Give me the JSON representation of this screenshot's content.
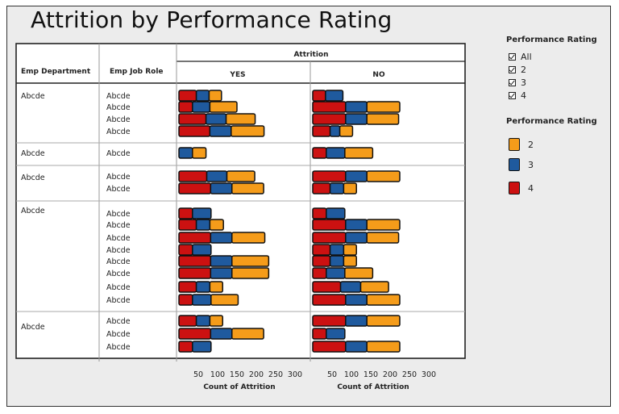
{
  "title": "Attrition by Performance Rating",
  "filter": {
    "title": "Performance Rating",
    "items": [
      "All",
      "2",
      "3",
      "4"
    ]
  },
  "legend": {
    "title": "Performance Rating",
    "items": [
      {
        "label": "2",
        "color": "#f59c1a"
      },
      {
        "label": "3",
        "color": "#1f5a9e"
      },
      {
        "label": "4",
        "color": "#cc1111"
      }
    ]
  },
  "chart_data": {
    "type": "bar",
    "stacked": true,
    "orientation": "horizontal",
    "row_headers": [
      "Emp Department",
      "Emp Job Role"
    ],
    "column_group_label": "Attrition",
    "panels": [
      "YES",
      "NO"
    ],
    "xlabel": "Count of Attrition",
    "xticks": [
      50,
      100,
      150,
      200,
      250,
      300
    ],
    "xlim": [
      0,
      300
    ],
    "series_order": [
      "4",
      "3",
      "2"
    ],
    "departments": [
      {
        "name": "Abcde",
        "roles": [
          {
            "name": "Abcde",
            "yes": {
              "4": 45,
              "3": 33,
              "2": 32
            },
            "no": {
              "4": 33,
              "3": 45,
              "2": 0
            }
          },
          {
            "name": "Abcde",
            "yes": {
              "4": 35,
              "3": 45,
              "2": 70
            },
            "no": {
              "4": 85,
              "3": 55,
              "2": 85
            }
          },
          {
            "name": "Abcde",
            "yes": {
              "4": 70,
              "3": 52,
              "2": 75
            },
            "no": {
              "4": 85,
              "3": 55,
              "2": 82
            }
          },
          {
            "name": "Abcde",
            "yes": {
              "4": 80,
              "3": 55,
              "2": 85
            },
            "no": {
              "4": 45,
              "3": 25,
              "2": 33
            }
          }
        ]
      },
      {
        "name": "Abcde",
        "roles": [
          {
            "name": "Abcde",
            "yes": {
              "4": 0,
              "3": 35,
              "2": 35
            },
            "no": {
              "4": 35,
              "3": 48,
              "2": 72
            }
          }
        ]
      },
      {
        "name": "Abcde",
        "roles": [
          {
            "name": "Abcde",
            "yes": {
              "4": 72,
              "3": 52,
              "2": 72
            },
            "no": {
              "4": 85,
              "3": 55,
              "2": 85
            }
          },
          {
            "name": "Abcde",
            "yes": {
              "4": 82,
              "3": 55,
              "2": 82
            },
            "no": {
              "4": 45,
              "3": 35,
              "2": 33
            }
          }
        ]
      },
      {
        "name": "Abcde",
        "roles": [
          {
            "name": "Abcde",
            "yes": {
              "4": 35,
              "3": 48,
              "2": 0
            },
            "no": {
              "4": 35,
              "3": 48,
              "2": 0
            }
          },
          {
            "name": "Abcde",
            "yes": {
              "4": 45,
              "3": 35,
              "2": 35
            },
            "no": {
              "4": 85,
              "3": 55,
              "2": 85
            }
          },
          {
            "name": "Abcde",
            "yes": {
              "4": 82,
              "3": 55,
              "2": 85
            },
            "no": {
              "4": 85,
              "3": 55,
              "2": 82
            }
          },
          {
            "name": "Abcde",
            "yes": {
              "4": 35,
              "3": 48,
              "2": 0
            },
            "no": {
              "4": 45,
              "3": 35,
              "2": 33
            }
          },
          {
            "name": "Abcde",
            "yes": {
              "4": 82,
              "3": 55,
              "2": 95
            },
            "no": {
              "4": 45,
              "3": 35,
              "2": 33
            }
          },
          {
            "name": "Abcde",
            "yes": {
              "4": 82,
              "3": 55,
              "2": 95
            },
            "no": {
              "4": 35,
              "3": 48,
              "2": 72
            }
          },
          {
            "name": "Abcde",
            "yes": {
              "4": 45,
              "3": 35,
              "2": 33
            },
            "no": {
              "4": 72,
              "3": 52,
              "2": 72
            }
          },
          {
            "name": "Abcde",
            "yes": {
              "4": 35,
              "3": 48,
              "2": 70
            },
            "no": {
              "4": 85,
              "3": 55,
              "2": 85
            }
          }
        ]
      },
      {
        "name": "Abcde",
        "roles": [
          {
            "name": "Abcde",
            "yes": {
              "4": 45,
              "3": 35,
              "2": 33
            },
            "no": {
              "4": 85,
              "3": 55,
              "2": 85
            }
          },
          {
            "name": "Abcde",
            "yes": {
              "4": 82,
              "3": 55,
              "2": 82
            },
            "no": {
              "4": 35,
              "3": 48,
              "2": 0
            }
          },
          {
            "name": "Abcde",
            "yes": {
              "4": 35,
              "3": 48,
              "2": 0
            },
            "no": {
              "4": 85,
              "3": 55,
              "2": 85
            }
          }
        ]
      }
    ]
  }
}
